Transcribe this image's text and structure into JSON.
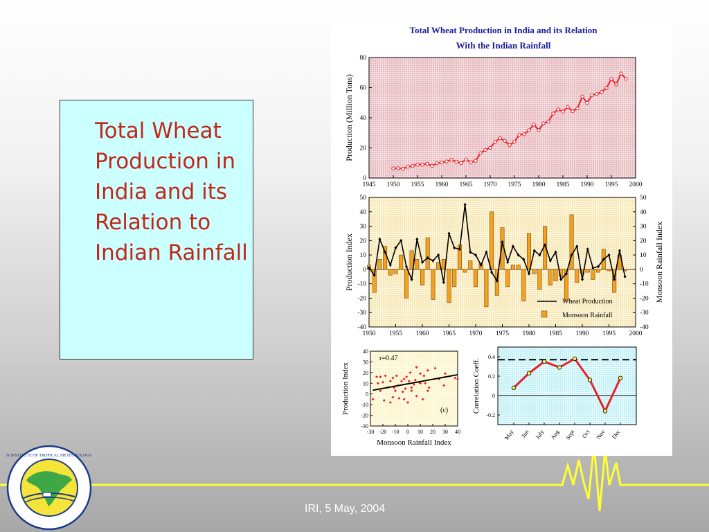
{
  "slide": {
    "title": "Total Wheat Production in India and its Relation to Indian Rainfall",
    "footer": "IRI, 5 May, 2004"
  },
  "logo": {
    "icon": "institute-seal-icon",
    "ring_text": "INDIAN INSTITUTE OF TROPICAL METEOROLOGY PUNE"
  },
  "colors": {
    "title_red": "#c0281a",
    "textbox_bg": "#ccffff",
    "footer_line": "#ffff33",
    "series_red": "#e8202a",
    "bar_orange": "#f6a11e",
    "bar_panel_bg": "#f9ecc0",
    "pink_panel_bg": "#e9c4c8",
    "corr_panel_bg": "#c8f0f6"
  },
  "chart_data": [
    {
      "type": "line",
      "title": "Total Wheat Production in India and its Relation With the Indian Rainfall",
      "xlabel": "",
      "ylabel": "Production (Million Tons)",
      "xlim": [
        1945,
        2000
      ],
      "ylim": [
        0,
        80
      ],
      "xticks": [
        1945,
        1950,
        1955,
        1960,
        1965,
        1970,
        1975,
        1980,
        1985,
        1990,
        1995,
        2000
      ],
      "yticks": [
        0,
        20,
        40,
        60,
        80
      ],
      "series": [
        {
          "x": [
            1950,
            1951,
            1952,
            1953,
            1954,
            1955,
            1956,
            1957,
            1958,
            1959,
            1960,
            1961,
            1962,
            1963,
            1964,
            1965,
            1966,
            1967,
            1968,
            1969,
            1970,
            1971,
            1972,
            1973,
            1974,
            1975,
            1976,
            1977,
            1978,
            1979,
            1980,
            1981,
            1982,
            1983,
            1984,
            1985,
            1986,
            1987,
            1988,
            1989,
            1990,
            1991,
            1992,
            1993,
            1994,
            1995,
            1996,
            1997,
            1998
          ],
          "y": [
            6.4,
            6.5,
            6.2,
            7.5,
            8.0,
            9.0,
            8.8,
            9.5,
            8.0,
            9.8,
            10.3,
            11.0,
            12.1,
            10.8,
            9.9,
            12.3,
            10.4,
            11.4,
            16.5,
            18.7,
            20.1,
            23.8,
            26.4,
            24.7,
            21.8,
            24.1,
            28.8,
            29.0,
            31.7,
            35.5,
            31.8,
            36.3,
            37.5,
            42.8,
            45.5,
            44.1,
            47.1,
            44.3,
            46.2,
            54.1,
            49.9,
            55.1,
            55.7,
            57.2,
            59.8,
            65.8,
            62.1,
            69.4,
            65.9
          ]
        }
      ]
    },
    {
      "type": "bar",
      "title": "",
      "xlabel": "",
      "ylabel": "Production Index",
      "y2label": "Monsoon Rainfall Index",
      "xlim": [
        1950,
        2000
      ],
      "ylim": [
        -40,
        50
      ],
      "xticks": [
        1950,
        1955,
        1960,
        1965,
        1970,
        1975,
        1980,
        1985,
        1990,
        1995,
        2000
      ],
      "yticks": [
        -40,
        -30,
        -20,
        -10,
        0,
        10,
        20,
        30,
        40,
        50
      ],
      "legend_position": "bottom-right",
      "series": [
        {
          "name": "Wheat Production",
          "type": "line",
          "x": [
            1950,
            1951,
            1952,
            1953,
            1954,
            1955,
            1956,
            1957,
            1958,
            1959,
            1960,
            1961,
            1962,
            1963,
            1964,
            1965,
            1966,
            1967,
            1968,
            1969,
            1970,
            1971,
            1972,
            1973,
            1974,
            1975,
            1976,
            1977,
            1978,
            1979,
            1980,
            1981,
            1982,
            1983,
            1984,
            1985,
            1986,
            1987,
            1988,
            1989,
            1990,
            1991,
            1992,
            1993,
            1994,
            1995,
            1996,
            1997,
            1998
          ],
          "y": [
            1,
            -4,
            21,
            12,
            3,
            15,
            20,
            2,
            -7,
            21,
            5,
            8,
            6,
            10,
            -9,
            25,
            15,
            14,
            45,
            12,
            10,
            3,
            12,
            -2,
            -8,
            19,
            5,
            16,
            10,
            7,
            -3,
            13,
            10,
            17,
            6,
            12,
            -7,
            -3,
            10,
            16,
            -7,
            14,
            1,
            2,
            7,
            10,
            -7,
            13,
            -5
          ]
        },
        {
          "name": "Monsoon Rainfall",
          "type": "bar",
          "x": [
            1950,
            1951,
            1952,
            1953,
            1954,
            1955,
            1956,
            1957,
            1958,
            1959,
            1960,
            1961,
            1962,
            1963,
            1964,
            1965,
            1966,
            1967,
            1968,
            1969,
            1970,
            1971,
            1972,
            1973,
            1974,
            1975,
            1976,
            1977,
            1978,
            1979,
            1980,
            1981,
            1982,
            1983,
            1984,
            1985,
            1986,
            1987,
            1988,
            1989,
            1990,
            1991,
            1992,
            1993,
            1994,
            1995,
            1996,
            1997,
            1998
          ],
          "y": [
            3,
            -16,
            7,
            16,
            -4,
            -3,
            10,
            -20,
            13,
            7,
            -11,
            22,
            -21,
            5,
            7,
            -23,
            -12,
            17,
            -2,
            6,
            -12,
            4,
            -26,
            40,
            -18,
            29,
            -12,
            3,
            3,
            -22,
            25,
            -3,
            -14,
            30,
            -11,
            -8,
            -5,
            -22,
            38,
            -9,
            -3,
            -2,
            -7,
            -2,
            14,
            -1,
            -16,
            10,
            -1
          ]
        }
      ]
    },
    {
      "type": "scatter",
      "title": "",
      "xlabel": "Monsoon Rainfall Index",
      "ylabel": "Production Index",
      "xlim": [
        -30,
        40
      ],
      "ylim": [
        -30,
        40
      ],
      "xticks": [
        -30,
        -20,
        -10,
        0,
        10,
        20,
        30,
        40
      ],
      "yticks": [
        -30,
        -20,
        -10,
        0,
        10,
        20,
        30,
        40
      ],
      "annotations": [
        "r=0.47",
        "(c)"
      ],
      "points": {
        "x": [
          -28,
          -25,
          -24,
          -22,
          -22,
          -20,
          -19,
          -18,
          -16,
          -14,
          -14,
          -12,
          -12,
          -11,
          -10,
          -9,
          -8,
          -7,
          -5,
          -4,
          -3,
          -3,
          -2,
          -1,
          0,
          1,
          2,
          3,
          3,
          5,
          6,
          7,
          7,
          9,
          10,
          10,
          12,
          13,
          14,
          16,
          16,
          17,
          22,
          25,
          29,
          30,
          38,
          40
        ],
        "y": [
          -5,
          16,
          10,
          16,
          3,
          11,
          -6,
          17,
          6,
          -8,
          12,
          -3,
          15,
          6,
          3,
          17,
          8,
          -4,
          12,
          2,
          -5,
          14,
          5,
          16,
          -8,
          12,
          20,
          3,
          6,
          9,
          13,
          -2,
          25,
          11,
          10,
          19,
          -5,
          17,
          10,
          22,
          3,
          6,
          24,
          14,
          8,
          19,
          15,
          14
        ]
      },
      "trendline": {
        "x": [
          -28,
          40
        ],
        "y": [
          3.5,
          18
        ]
      }
    },
    {
      "type": "line",
      "title": "",
      "xlabel": "",
      "ylabel": "Correlation Coeff.",
      "ylim": [
        -0.3,
        0.5
      ],
      "yticks": [
        -0.2,
        0,
        0.2,
        0.4
      ],
      "categories": [
        "May",
        "Jun",
        "July",
        "Aug",
        "Sept",
        "Oct",
        "Nov",
        "Dec"
      ],
      "series": [
        {
          "values": [
            0.08,
            0.23,
            0.35,
            0.29,
            0.38,
            0.16,
            -0.16,
            0.18
          ]
        }
      ],
      "reference_lines": [
        0.37,
        0
      ]
    }
  ]
}
